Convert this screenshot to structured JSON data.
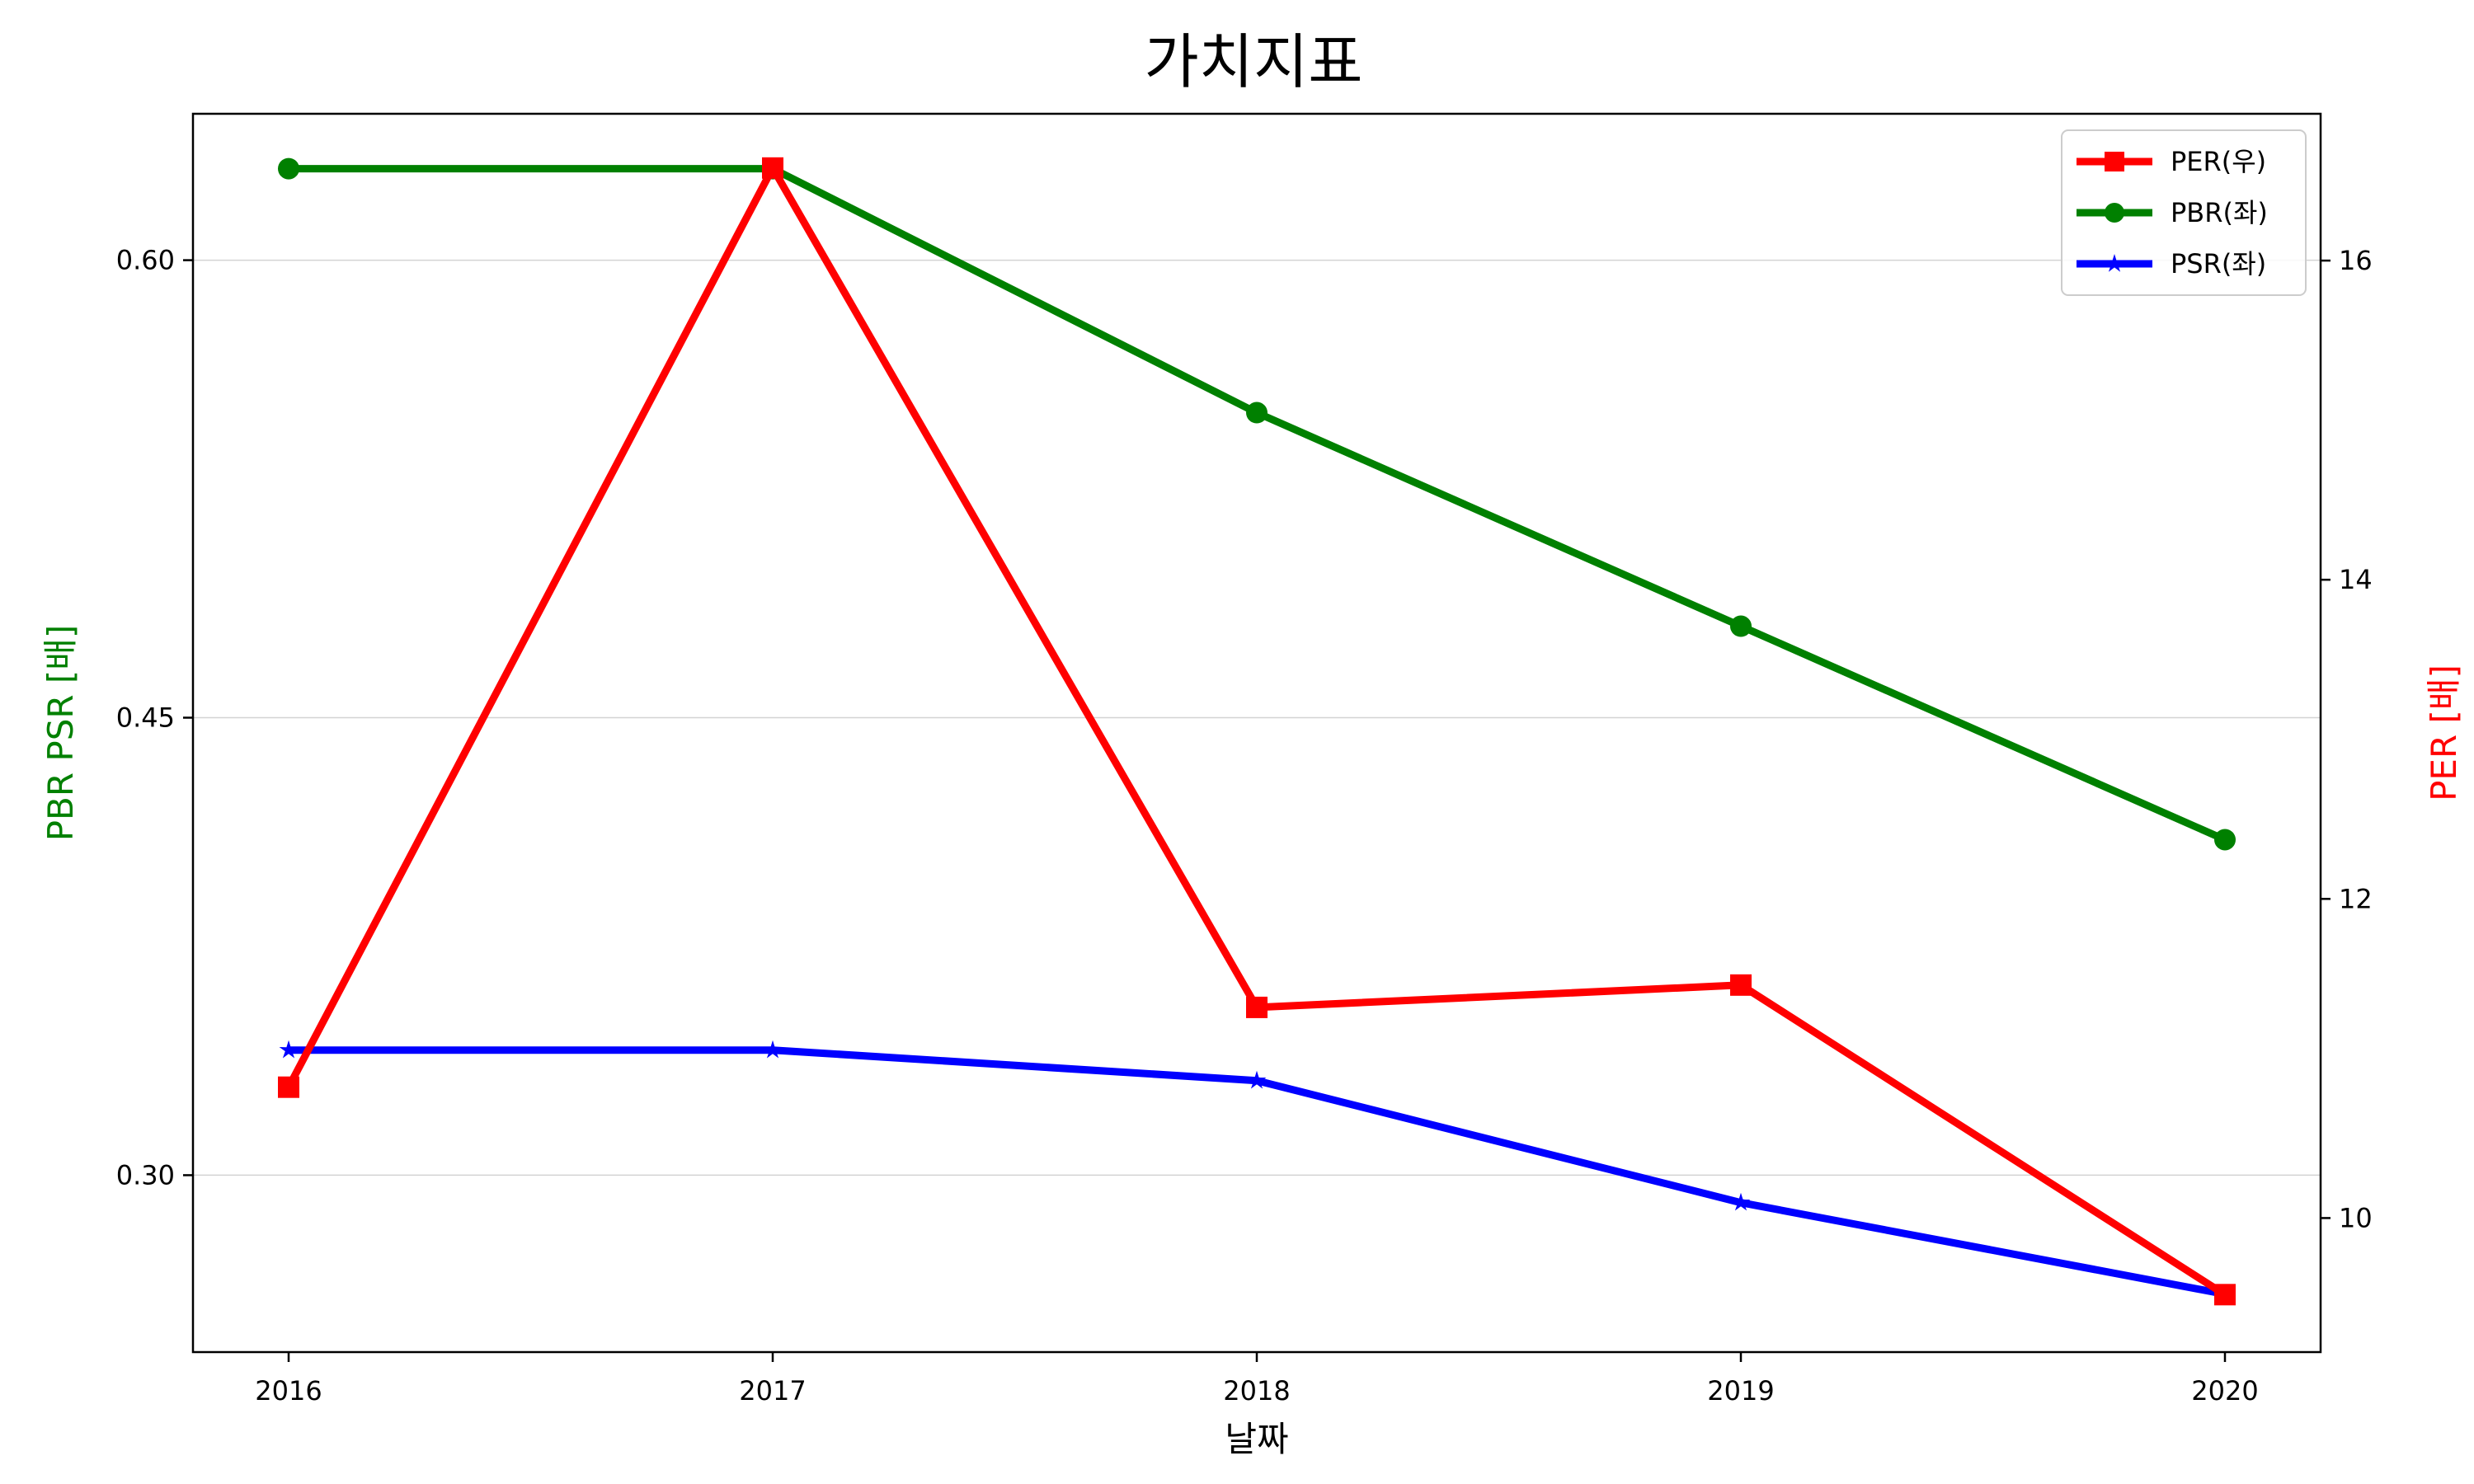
{
  "chart_data": {
    "type": "line",
    "title": "가치지표",
    "xlabel": "날짜",
    "ylabel_left": "PBR PSR [배]",
    "ylabel_right": "PER [배]",
    "x": [
      "2016",
      "2017",
      "2018",
      "2019",
      "2020"
    ],
    "left_axis": {
      "ylim": [
        0.242,
        0.648
      ],
      "ticks": [
        0.3,
        0.45,
        0.6
      ],
      "tick_labels": [
        "0.30",
        "0.45",
        "0.60"
      ],
      "grid": true
    },
    "right_axis": {
      "ylim": [
        9.16,
        16.92
      ],
      "ticks": [
        10,
        12,
        14,
        16
      ],
      "tick_labels": [
        "10",
        "12",
        "14",
        "16"
      ]
    },
    "series": [
      {
        "name": "PER(우)",
        "axis": "right",
        "color": "#ff0000",
        "marker": "square",
        "values": [
          10.82,
          16.58,
          11.32,
          11.46,
          9.52
        ]
      },
      {
        "name": "PBR(좌)",
        "axis": "left",
        "color": "#008000",
        "marker": "circle",
        "values": [
          0.63,
          0.63,
          0.55,
          0.48,
          0.41
        ]
      },
      {
        "name": "PSR(좌)",
        "axis": "left",
        "color": "#0000ff",
        "marker": "star",
        "values": [
          0.341,
          0.341,
          0.331,
          0.291,
          0.261
        ]
      }
    ],
    "legend": {
      "placement": "top-right"
    },
    "colors": {
      "left_axis_label": "#008000",
      "right_axis_label": "#ff0000",
      "grid": "#d3d3d3"
    }
  }
}
